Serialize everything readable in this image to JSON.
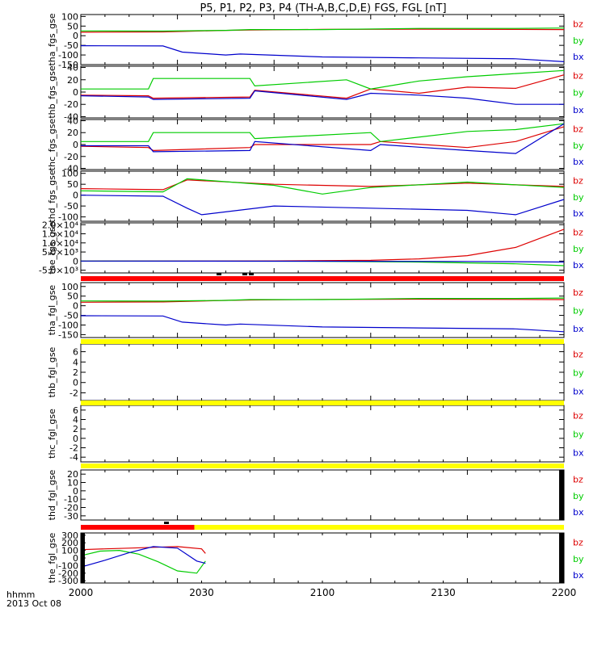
{
  "title": "P5, P1, P2, P3, P4 (TH-A,B,C,D,E) FGS, FGL [nT]",
  "time_axis": {
    "label_line1": "hhmm",
    "label_line2": "2013 Oct 08",
    "ticks": [
      "2000",
      "2030",
      "2100",
      "2130",
      "2200"
    ]
  },
  "colors": {
    "bx": "#0000cc",
    "by": "#00cc00",
    "bz": "#dd0000",
    "bar_red": "#ff0000",
    "bar_yellow": "#ffff00"
  },
  "chart_data": [
    {
      "type": "line",
      "ylabel": "tha_fgs_gse",
      "ylim": [
        -150,
        110
      ],
      "yticks": [
        "100",
        "50",
        "0",
        "-50",
        "-100",
        "-150"
      ],
      "legend": [
        "bz",
        "by",
        "bx"
      ],
      "series": [
        {
          "name": "bz",
          "x": [
            0,
            0.17,
            0.3,
            0.35,
            0.5,
            0.7,
            0.9,
            1
          ],
          "values": [
            18,
            20,
            28,
            30,
            33,
            34,
            33,
            32
          ]
        },
        {
          "name": "by",
          "x": [
            0,
            0.17,
            0.3,
            0.35,
            0.5,
            0.7,
            0.9,
            1
          ],
          "values": [
            25,
            24,
            28,
            32,
            32,
            38,
            38,
            40
          ]
        },
        {
          "name": "bx",
          "x": [
            0,
            0.17,
            0.21,
            0.3,
            0.33,
            0.5,
            0.7,
            0.9,
            1
          ],
          "values": [
            -52,
            -53,
            -85,
            -100,
            -95,
            -110,
            -115,
            -120,
            -135
          ]
        }
      ]
    },
    {
      "type": "line",
      "ylabel": "thb_fgs_gse",
      "ylim": [
        -42,
        42
      ],
      "yticks": [
        "40",
        "20",
        "0",
        "-20",
        "-40"
      ],
      "legend": [
        "bz",
        "by",
        "bx"
      ],
      "series": [
        {
          "name": "bz",
          "x": [
            0,
            0.14,
            0.15,
            0.35,
            0.36,
            0.55,
            0.6,
            0.7,
            0.8,
            0.9,
            1
          ],
          "values": [
            -5,
            -6,
            -10,
            -8,
            3,
            -10,
            5,
            -2,
            8,
            6,
            28
          ]
        },
        {
          "name": "by",
          "x": [
            0,
            0.14,
            0.15,
            0.35,
            0.36,
            0.55,
            0.6,
            0.7,
            0.8,
            0.9,
            1
          ],
          "values": [
            5,
            5,
            22,
            22,
            10,
            20,
            5,
            18,
            25,
            30,
            35
          ]
        },
        {
          "name": "bx",
          "x": [
            0,
            0.14,
            0.15,
            0.35,
            0.36,
            0.55,
            0.6,
            0.7,
            0.8,
            0.9,
            1
          ],
          "values": [
            -6,
            -8,
            -12,
            -10,
            2,
            -12,
            -2,
            -5,
            -10,
            -20,
            -20
          ]
        }
      ]
    },
    {
      "type": "line",
      "ylabel": "thc_fgs_gse",
      "ylim": [
        -42,
        42
      ],
      "yticks": [
        "40",
        "20",
        "0",
        "-20",
        "-40"
      ],
      "legend": [
        "bz",
        "by",
        "bx"
      ],
      "series": [
        {
          "name": "bz",
          "x": [
            0,
            0.14,
            0.15,
            0.35,
            0.36,
            0.6,
            0.62,
            0.8,
            0.9,
            1
          ],
          "values": [
            -3,
            -5,
            -10,
            -5,
            0,
            0,
            5,
            -5,
            5,
            30
          ]
        },
        {
          "name": "by",
          "x": [
            0,
            0.14,
            0.15,
            0.35,
            0.36,
            0.6,
            0.62,
            0.8,
            0.9,
            1
          ],
          "values": [
            5,
            5,
            20,
            20,
            10,
            20,
            5,
            22,
            25,
            35
          ]
        },
        {
          "name": "bx",
          "x": [
            0,
            0.14,
            0.15,
            0.35,
            0.36,
            0.6,
            0.62,
            0.8,
            0.9,
            1
          ],
          "values": [
            -2,
            -2,
            -12,
            -10,
            5,
            -10,
            0,
            -10,
            -15,
            35
          ]
        }
      ]
    },
    {
      "type": "line",
      "ylabel": "thd_fgs_gse",
      "ylim": [
        -120,
        110
      ],
      "yticks": [
        "100",
        "50",
        "0",
        "-50",
        "-100"
      ],
      "legend": [
        "bz",
        "by",
        "bx"
      ],
      "series": [
        {
          "name": "bz",
          "x": [
            0,
            0.17,
            0.22,
            0.4,
            0.6,
            0.8,
            1
          ],
          "values": [
            30,
            25,
            70,
            50,
            40,
            55,
            40
          ]
        },
        {
          "name": "by",
          "x": [
            0,
            0.17,
            0.22,
            0.4,
            0.5,
            0.6,
            0.8,
            1
          ],
          "values": [
            20,
            15,
            75,
            45,
            5,
            35,
            60,
            35
          ]
        },
        {
          "name": "bx",
          "x": [
            0,
            0.17,
            0.22,
            0.25,
            0.4,
            0.6,
            0.8,
            0.9,
            1
          ],
          "values": [
            0,
            -5,
            -60,
            -90,
            -50,
            -60,
            -70,
            -90,
            -20
          ]
        }
      ]
    },
    {
      "type": "line",
      "ylabel": "the_fgs_gse",
      "ylim": [
        -6500,
        21000
      ],
      "yticks": [
        "2.0×10⁴",
        "1.5×10⁴",
        "1.0×10⁴",
        "5.0×10³",
        "0",
        "-5.0×10³"
      ],
      "legend": [
        "bz",
        "by",
        "bx"
      ],
      "series": [
        {
          "name": "bz",
          "x": [
            0,
            0.4,
            0.6,
            0.7,
            0.8,
            0.9,
            1
          ],
          "values": [
            0,
            100,
            400,
            1200,
            3000,
            7500,
            17500
          ]
        },
        {
          "name": "by",
          "x": [
            0,
            0.5,
            0.7,
            0.9,
            1
          ],
          "values": [
            0,
            -100,
            -500,
            -1500,
            -2500
          ]
        },
        {
          "name": "bx",
          "x": [
            0,
            0.5,
            0.8,
            1
          ],
          "values": [
            0,
            -50,
            -200,
            -500
          ]
        }
      ]
    },
    {
      "type": "line",
      "ylabel": "tha_fgl_gse",
      "ylim": [
        -165,
        120
      ],
      "yticks": [
        "100",
        "50",
        "0",
        "-50",
        "-100",
        "-150"
      ],
      "legend": [
        "bz",
        "by",
        "bx"
      ],
      "series": [
        {
          "name": "bz",
          "x": [
            0,
            0.17,
            0.3,
            0.35,
            0.5,
            0.7,
            0.9,
            1
          ],
          "values": [
            18,
            20,
            28,
            30,
            33,
            34,
            33,
            32
          ]
        },
        {
          "name": "by",
          "x": [
            0,
            0.17,
            0.3,
            0.35,
            0.5,
            0.7,
            0.9,
            1
          ],
          "values": [
            25,
            24,
            28,
            32,
            32,
            38,
            38,
            40
          ]
        },
        {
          "name": "bx",
          "x": [
            0,
            0.17,
            0.21,
            0.3,
            0.33,
            0.5,
            0.7,
            0.9,
            1
          ],
          "values": [
            -52,
            -53,
            -85,
            -100,
            -95,
            -110,
            -115,
            -120,
            -135
          ]
        }
      ]
    },
    {
      "type": "line",
      "ylabel": "thb_fgl_gse",
      "ylim": [
        -3.5,
        7.5
      ],
      "yticks": [
        "6",
        "4",
        "2",
        "0",
        "-2"
      ],
      "legend": [
        "bz",
        "by",
        "bx"
      ],
      "series": []
    },
    {
      "type": "line",
      "ylabel": "thc_fgl_gse",
      "ylim": [
        -5,
        7
      ],
      "yticks": [
        "6",
        "4",
        "2",
        "0",
        "-2",
        "-4"
      ],
      "legend": [
        "bz",
        "by",
        "bx"
      ],
      "series": []
    },
    {
      "type": "line",
      "ylabel": "thd_fgl_gse",
      "ylim": [
        -35,
        25
      ],
      "yticks": [
        "20",
        "10",
        "0",
        "-10",
        "-20",
        "-30"
      ],
      "legend": [
        "bz",
        "by",
        "bx"
      ],
      "series": []
    },
    {
      "type": "line",
      "ylabel": "the_fgl_gse",
      "ylim": [
        -330,
        330
      ],
      "yticks": [
        "300",
        "200",
        "100",
        "0",
        "-100",
        "-200",
        "-300"
      ],
      "legend": [
        "bz",
        "by",
        "bx"
      ],
      "series": [
        {
          "name": "bz",
          "x": [
            0,
            0.05,
            0.1,
            0.15,
            0.2,
            0.25,
            0.258
          ],
          "values": [
            110,
            120,
            130,
            140,
            150,
            120,
            60
          ]
        },
        {
          "name": "by",
          "x": [
            0,
            0.04,
            0.08,
            0.12,
            0.16,
            0.2,
            0.24,
            0.258
          ],
          "values": [
            30,
            90,
            100,
            50,
            -50,
            -170,
            -200,
            -40
          ]
        },
        {
          "name": "bx",
          "x": [
            0,
            0.05,
            0.1,
            0.15,
            0.2,
            0.24,
            0.258
          ],
          "values": [
            -120,
            -30,
            70,
            150,
            130,
            -40,
            -70
          ]
        }
      ]
    }
  ]
}
